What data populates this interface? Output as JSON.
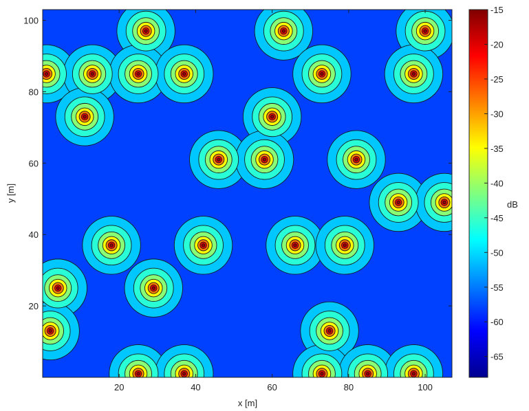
{
  "chart_data": {
    "type": "heatmap",
    "subtype": "filled-contour",
    "xlabel": "x [m]",
    "ylabel": "y [m]",
    "xlim": [
      0,
      107
    ],
    "ylim": [
      0,
      103
    ],
    "xticks": [
      20,
      40,
      60,
      80,
      100
    ],
    "yticks": [
      20,
      40,
      60,
      80,
      100
    ],
    "colorbar": {
      "label": "dB",
      "range": [
        -68,
        -15
      ],
      "ticks": [
        -15,
        -20,
        -25,
        -30,
        -35,
        -40,
        -45,
        -50,
        -55,
        -60,
        -65
      ]
    },
    "background_level_db": -58,
    "peak_level_db": -15,
    "emitters": [
      {
        "x": 27,
        "y": 97
      },
      {
        "x": 63,
        "y": 97
      },
      {
        "x": 100,
        "y": 97
      },
      {
        "x": 1,
        "y": 85
      },
      {
        "x": 13,
        "y": 85
      },
      {
        "x": 25,
        "y": 85
      },
      {
        "x": 37,
        "y": 85
      },
      {
        "x": 73,
        "y": 85
      },
      {
        "x": 97,
        "y": 85
      },
      {
        "x": 11,
        "y": 73
      },
      {
        "x": 60,
        "y": 73
      },
      {
        "x": 46,
        "y": 61
      },
      {
        "x": 58,
        "y": 61
      },
      {
        "x": 82,
        "y": 61
      },
      {
        "x": 93,
        "y": 49
      },
      {
        "x": 105,
        "y": 49
      },
      {
        "x": 18,
        "y": 37
      },
      {
        "x": 42,
        "y": 37
      },
      {
        "x": 66,
        "y": 37
      },
      {
        "x": 79,
        "y": 37
      },
      {
        "x": 4,
        "y": 25
      },
      {
        "x": 29,
        "y": 25
      },
      {
        "x": 2,
        "y": 13
      },
      {
        "x": 75,
        "y": 13
      },
      {
        "x": 25,
        "y": 1
      },
      {
        "x": 37,
        "y": 1
      },
      {
        "x": 73,
        "y": 1
      },
      {
        "x": 85,
        "y": 1
      },
      {
        "x": 97,
        "y": 1
      }
    ]
  }
}
